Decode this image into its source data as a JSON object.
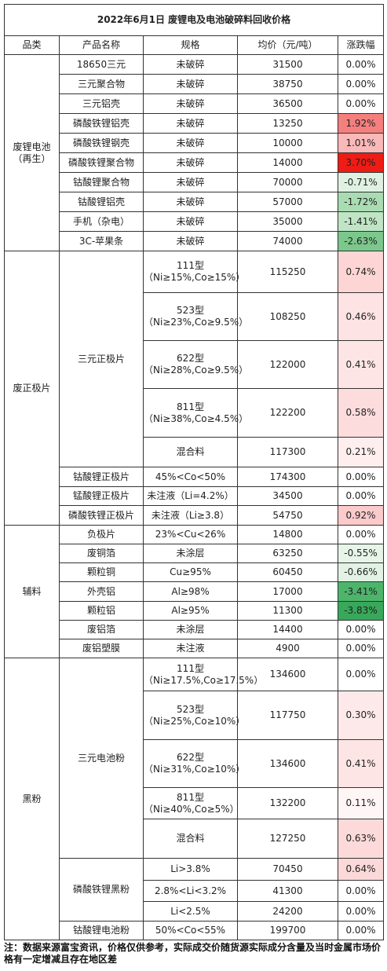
{
  "title": "2022年6月1日 废锂电及电池破碎料回收价格",
  "header": [
    "品类",
    "产品名称",
    "规格",
    "均价（元/吨）",
    "涨跌幅"
  ],
  "groups": [
    {
      "category": "废锂电池\n（再生）",
      "products": [
        {
          "name": "18650三元",
          "rows": [
            {
              "spec": "未破碎",
              "price": 31500,
              "change": "0.00%",
              "color": "#ffffff"
            }
          ]
        },
        {
          "name": "三元聚合物",
          "rows": [
            {
              "spec": "未破碎",
              "price": 38750,
              "change": "0.00%",
              "color": "#ffffff"
            }
          ]
        },
        {
          "name": "三元铝壳",
          "rows": [
            {
              "spec": "未破碎",
              "price": 36500,
              "change": "0.00%",
              "color": "#ffffff"
            }
          ]
        },
        {
          "name": "磷酸铁锂铝壳",
          "rows": [
            {
              "spec": "未破碎",
              "price": 13250,
              "change": "1.92%",
              "color": "#f4807e"
            }
          ]
        },
        {
          "name": "磷酸铁锂钢壳",
          "rows": [
            {
              "spec": "未破碎",
              "price": 10000,
              "change": "1.01%",
              "color": "#f8b9b8"
            }
          ]
        },
        {
          "name": "磷酸铁锂聚合物",
          "rows": [
            {
              "spec": "未破碎",
              "price": 14000,
              "change": "3.70%",
              "color": "#ee1c14"
            }
          ]
        },
        {
          "name": "钴酸锂聚合物",
          "rows": [
            {
              "spec": "未破碎",
              "price": 70000,
              "change": "-0.71%",
              "color": "#e0f1e2"
            }
          ]
        },
        {
          "name": "钴酸锂铝壳",
          "rows": [
            {
              "spec": "未破碎",
              "price": 57000,
              "change": "-1.72%",
              "color": "#a9dcb2"
            }
          ]
        },
        {
          "name": "手机（杂电）",
          "rows": [
            {
              "spec": "未破碎",
              "price": 35000,
              "change": "-1.41%",
              "color": "#bfe5c5"
            }
          ]
        },
        {
          "name": "3C-苹果条",
          "rows": [
            {
              "spec": "未破碎",
              "price": 74000,
              "change": "-2.63%",
              "color": "#7cc78c"
            }
          ]
        }
      ]
    },
    {
      "category": "废正极片",
      "products": [
        {
          "name": "三元正极片",
          "rows": [
            {
              "spec": "111型\n（Ni≥15%,Co≥15%）",
              "price": 115250,
              "change": "0.74%",
              "color": "#fcd5d4"
            },
            {
              "spec": "523型\n（Ni≥23%,Co≥9.5%）",
              "price": 108250,
              "change": "0.46%",
              "color": "#fde3e3"
            },
            {
              "spec": "622型\n（Ni≥28%,Co≥9.5%）",
              "price": 122000,
              "change": "0.41%",
              "color": "#fde5e5"
            },
            {
              "spec": "811型\n（Ni≥38%,Co≥4.5%）",
              "price": 122200,
              "change": "0.58%",
              "color": "#fcdcdc"
            },
            {
              "spec": "混合料",
              "price": 117300,
              "change": "0.21%",
              "color": "#feeeee"
            }
          ]
        },
        {
          "name": "钴酸锂正极片",
          "rows": [
            {
              "spec": "45%<Co<50%",
              "price": 174300,
              "change": "0.00%",
              "color": "#ffffff"
            }
          ]
        },
        {
          "name": "锰酸锂正极片",
          "rows": [
            {
              "spec": "未注液（Li=4.2%）",
              "price": 34500,
              "change": "0.00%",
              "color": "#ffffff"
            }
          ]
        },
        {
          "name": "磷酸铁锂正极片",
          "rows": [
            {
              "spec": "未注液（Li≥3.8）",
              "price": 54750,
              "change": "0.92%",
              "color": "#fbcaca"
            }
          ]
        }
      ]
    },
    {
      "category": "辅料",
      "products": [
        {
          "name": "负极片",
          "rows": [
            {
              "spec": "23%<Cu<26%",
              "price": 14800,
              "change": "0.00%",
              "color": "#ffffff"
            }
          ]
        },
        {
          "name": "废铜箔",
          "rows": [
            {
              "spec": "未涂层",
              "price": 63250,
              "change": "-0.55%",
              "color": "#e7f4e8"
            }
          ]
        },
        {
          "name": "颗粒铜",
          "rows": [
            {
              "spec": "Cu≥95%",
              "price": 60450,
              "change": "-0.66%",
              "color": "#e2f2e4"
            }
          ]
        },
        {
          "name": "外壳铝",
          "rows": [
            {
              "spec": "Al≥98%",
              "price": 17000,
              "change": "-3.41%",
              "color": "#4db56b"
            }
          ]
        },
        {
          "name": "颗粒铝",
          "rows": [
            {
              "spec": "Al≥95%",
              "price": 11300,
              "change": "-3.83%",
              "color": "#38a85a"
            }
          ]
        },
        {
          "name": "废铝箔",
          "rows": [
            {
              "spec": "未涂层",
              "price": 14400,
              "change": "0.00%",
              "color": "#ffffff"
            }
          ]
        },
        {
          "name": "废铝塑膜",
          "rows": [
            {
              "spec": "未注液",
              "price": 4900,
              "change": "0.00%",
              "color": "#ffffff"
            }
          ]
        }
      ]
    },
    {
      "category": "黑粉",
      "products": [
        {
          "name": "三元电池粉",
          "rows": [
            {
              "spec": "111型\n（Ni≥17.5%,Co≥17.5%）",
              "price": 134600,
              "change": "0.00%",
              "color": "#ffffff"
            },
            {
              "spec": "523型\n（Ni≥25%,Co≥10%）",
              "price": 117750,
              "change": "0.30%",
              "color": "#fde9e9"
            },
            {
              "spec": "622型\n（Ni≥31%,Co≥10%）",
              "price": 134600,
              "change": "0.41%",
              "color": "#fde5e5"
            },
            {
              "spec": "811型\n（Ni≥40%,Co≥5%）",
              "price": 132200,
              "change": "0.11%",
              "color": "#fef5f5"
            },
            {
              "spec": "混合料",
              "price": 127250,
              "change": "0.63%",
              "color": "#fcdada"
            }
          ]
        },
        {
          "name": "磷酸铁锂黑粉",
          "rows": [
            {
              "spec": "Li>3.8%",
              "price": 70450,
              "change": "0.64%",
              "color": "#fcd9d9"
            },
            {
              "spec": "2.8%<Li<3.2%",
              "price": 41300,
              "change": "0.00%",
              "color": "#ffffff"
            },
            {
              "spec": "Li<2.5%",
              "price": 24200,
              "change": "0.00%",
              "color": "#ffffff"
            }
          ]
        },
        {
          "name": "钴酸锂电池粉",
          "rows": [
            {
              "spec": "50%<Co<55%",
              "price": 199700,
              "change": "0.00%",
              "color": "#ffffff"
            }
          ]
        }
      ]
    }
  ],
  "note": "注：数据来源富宝资讯，价格仅供参考，实际成交价随货源实际成分含量及当时金属市场价格有一定增减且存在地区差"
}
